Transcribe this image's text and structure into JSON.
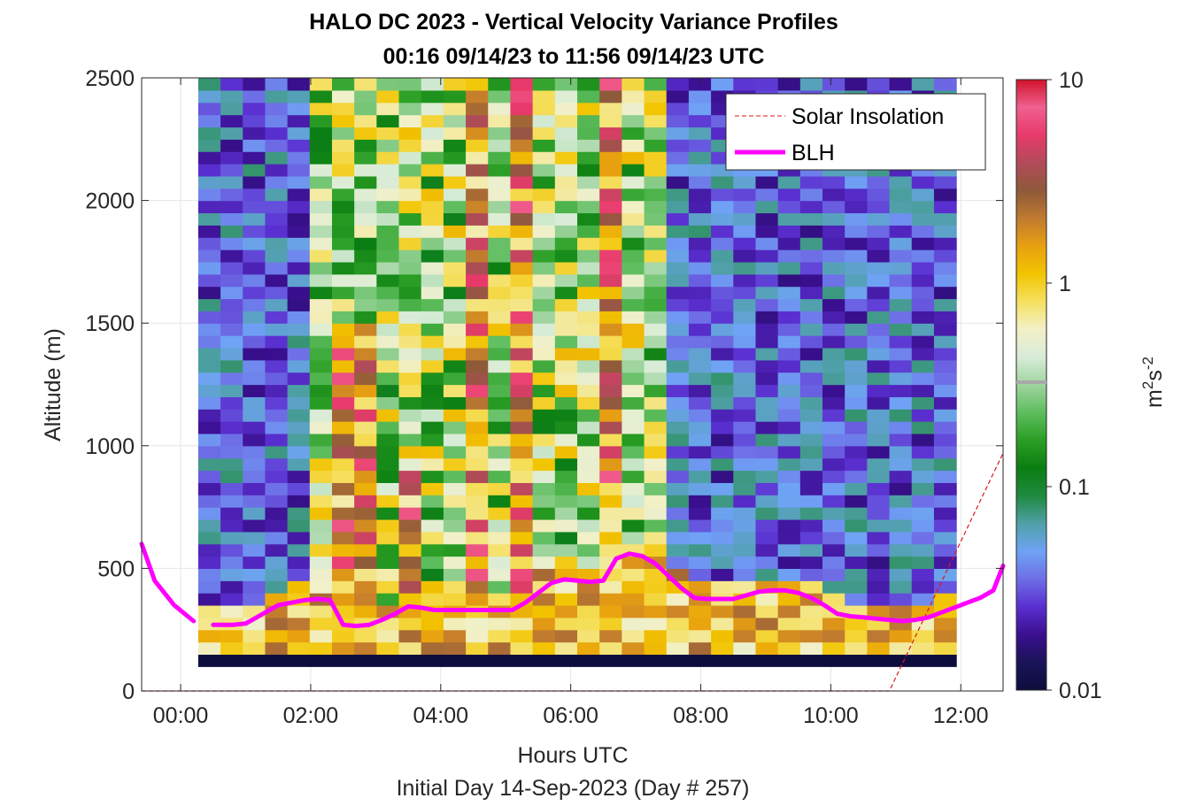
{
  "chart_data": {
    "type": "heatmap",
    "title": "HALO DC 2023 - Vertical Velocity Variance Profiles",
    "subtitle": "00:16 09/14/23 to 11:56 09/14/23  UTC",
    "xlabel": "Hours UTC",
    "footer": "Initial Day 14-Sep-2023 (Day # 257)",
    "ylabel": "Altitude (m)",
    "xlim": [
      -0.6,
      12.65
    ],
    "ylim": [
      0,
      2500
    ],
    "x_ticks": [
      0,
      2,
      4,
      6,
      8,
      10,
      12
    ],
    "x_tick_labels": [
      "00:00",
      "02:00",
      "04:00",
      "06:00",
      "08:00",
      "10:00",
      "12:00"
    ],
    "y_ticks": [
      0,
      500,
      1000,
      1500,
      2000,
      2500
    ],
    "y_tick_labels": [
      "0",
      "500",
      "1000",
      "1500",
      "2000",
      "2500"
    ],
    "grid": true,
    "colorbar": {
      "scale": "log",
      "range": [
        0.01,
        10
      ],
      "ticks": [
        0.01,
        0.1,
        1,
        10
      ],
      "tick_labels": [
        "0.01",
        "0.1",
        "1",
        "10"
      ],
      "label_base": "m",
      "label_exp1": "2",
      "label_mid": "s",
      "label_exp2": "-2",
      "colormap": [
        "#0d0d3d",
        "#1a1458",
        "#3a0f8f",
        "#5a2fd0",
        "#6e6ee6",
        "#6fa3f5",
        "#4fa0a8",
        "#1e8a3e",
        "#0a7d12",
        "#2a9e24",
        "#5ebd5e",
        "#9fd49f",
        "#d8ecd8",
        "#f2f0c8",
        "#f5e060",
        "#f2c400",
        "#e8a010",
        "#c07a30",
        "#8e5a3a",
        "#b24a5a",
        "#e83a6a",
        "#f06090",
        "#d0142a"
      ]
    },
    "time_range_h": [
      0.27,
      11.93
    ],
    "alt_range_m": [
      100,
      2500
    ],
    "series": [
      {
        "name": "Solar Insolation",
        "color": "#d91a1a",
        "style": "dashed",
        "x": [
          -0.6,
          10.9,
          12.65
        ],
        "y": [
          0,
          0,
          970
        ]
      },
      {
        "name": "BLH",
        "color": "#ff00ff",
        "style": "solid",
        "segments": [
          {
            "x": [
              -0.6,
              -0.4,
              -0.1,
              0.2
            ],
            "y": [
              600,
              450,
              350,
              285
            ]
          },
          {
            "x": [
              0.5,
              0.8,
              1.0,
              1.2,
              1.5,
              1.9,
              2.1,
              2.3,
              2.5,
              2.7,
              2.9,
              3.1,
              3.3,
              3.5,
              3.7,
              3.9,
              4.1,
              4.3,
              4.5,
              4.7,
              4.9,
              5.1,
              5.3,
              5.5,
              5.7,
              5.9,
              6.1,
              6.3,
              6.5,
              6.7,
              6.9,
              7.1,
              7.3,
              7.5,
              7.7,
              7.9,
              8.1,
              8.3,
              8.5,
              8.7,
              8.9,
              9.1,
              9.3,
              9.5,
              9.7,
              9.9,
              10.1,
              10.3,
              10.5,
              10.7,
              10.9,
              11.1,
              11.3,
              11.5,
              11.7,
              11.9,
              12.1,
              12.3,
              12.5,
              12.65
            ],
            "y": [
              270,
              270,
              275,
              305,
              350,
              370,
              375,
              370,
              270,
              265,
              270,
              290,
              315,
              345,
              340,
              330,
              330,
              330,
              330,
              330,
              330,
              330,
              360,
              400,
              440,
              455,
              450,
              445,
              450,
              540,
              560,
              550,
              520,
              470,
              420,
              380,
              375,
              375,
              375,
              390,
              405,
              410,
              410,
              400,
              380,
              350,
              315,
              305,
              300,
              295,
              290,
              285,
              290,
              300,
              320,
              340,
              360,
              380,
              410,
              510
            ]
          }
        ]
      }
    ],
    "legend": {
      "placement": "top-right",
      "entries": [
        "Solar Insolation",
        "BLH"
      ]
    }
  }
}
